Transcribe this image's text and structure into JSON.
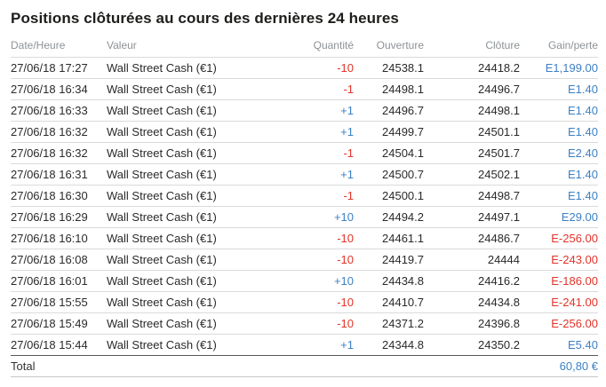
{
  "title": "Positions clôturées au cours des dernières 24 heures",
  "columns": {
    "date": "Date/Heure",
    "valeur": "Valeur",
    "quantite": "Quantité",
    "ouverture": "Ouverture",
    "cloture": "Clôture",
    "gain": "Gain/perte"
  },
  "rows": [
    {
      "date": "27/06/18 17:27",
      "valeur": "Wall Street Cash (€1)",
      "quantite": "-10",
      "quantite_sign": "neg",
      "ouverture": "24538.1",
      "cloture": "24418.2",
      "gain": "E1,199.00",
      "gain_sign": "pos"
    },
    {
      "date": "27/06/18 16:34",
      "valeur": "Wall Street Cash (€1)",
      "quantite": "-1",
      "quantite_sign": "neg",
      "ouverture": "24498.1",
      "cloture": "24496.7",
      "gain": "E1.40",
      "gain_sign": "pos"
    },
    {
      "date": "27/06/18 16:33",
      "valeur": "Wall Street Cash (€1)",
      "quantite": "+1",
      "quantite_sign": "pos",
      "ouverture": "24496.7",
      "cloture": "24498.1",
      "gain": "E1.40",
      "gain_sign": "pos"
    },
    {
      "date": "27/06/18 16:32",
      "valeur": "Wall Street Cash (€1)",
      "quantite": "+1",
      "quantite_sign": "pos",
      "ouverture": "24499.7",
      "cloture": "24501.1",
      "gain": "E1.40",
      "gain_sign": "pos"
    },
    {
      "date": "27/06/18 16:32",
      "valeur": "Wall Street Cash (€1)",
      "quantite": "-1",
      "quantite_sign": "neg",
      "ouverture": "24504.1",
      "cloture": "24501.7",
      "gain": "E2.40",
      "gain_sign": "pos"
    },
    {
      "date": "27/06/18 16:31",
      "valeur": "Wall Street Cash (€1)",
      "quantite": "+1",
      "quantite_sign": "pos",
      "ouverture": "24500.7",
      "cloture": "24502.1",
      "gain": "E1.40",
      "gain_sign": "pos"
    },
    {
      "date": "27/06/18 16:30",
      "valeur": "Wall Street Cash (€1)",
      "quantite": "-1",
      "quantite_sign": "neg",
      "ouverture": "24500.1",
      "cloture": "24498.7",
      "gain": "E1.40",
      "gain_sign": "pos"
    },
    {
      "date": "27/06/18 16:29",
      "valeur": "Wall Street Cash (€1)",
      "quantite": "+10",
      "quantite_sign": "pos",
      "ouverture": "24494.2",
      "cloture": "24497.1",
      "gain": "E29.00",
      "gain_sign": "pos"
    },
    {
      "date": "27/06/18 16:10",
      "valeur": "Wall Street Cash (€1)",
      "quantite": "-10",
      "quantite_sign": "neg",
      "ouverture": "24461.1",
      "cloture": "24486.7",
      "gain": "E-256.00",
      "gain_sign": "neg"
    },
    {
      "date": "27/06/18 16:08",
      "valeur": "Wall Street Cash (€1)",
      "quantite": "-10",
      "quantite_sign": "neg",
      "ouverture": "24419.7",
      "cloture": "24444",
      "gain": "E-243.00",
      "gain_sign": "neg"
    },
    {
      "date": "27/06/18 16:01",
      "valeur": "Wall Street Cash (€1)",
      "quantite": "+10",
      "quantite_sign": "pos",
      "ouverture": "24434.8",
      "cloture": "24416.2",
      "gain": "E-186.00",
      "gain_sign": "neg"
    },
    {
      "date": "27/06/18 15:55",
      "valeur": "Wall Street Cash (€1)",
      "quantite": "-10",
      "quantite_sign": "neg",
      "ouverture": "24410.7",
      "cloture": "24434.8",
      "gain": "E-241.00",
      "gain_sign": "neg"
    },
    {
      "date": "27/06/18 15:49",
      "valeur": "Wall Street Cash (€1)",
      "quantite": "-10",
      "quantite_sign": "neg",
      "ouverture": "24371.2",
      "cloture": "24396.8",
      "gain": "E-256.00",
      "gain_sign": "neg"
    },
    {
      "date": "27/06/18 15:44",
      "valeur": "Wall Street Cash (€1)",
      "quantite": "+1",
      "quantite_sign": "pos",
      "ouverture": "24344.8",
      "cloture": "24350.2",
      "gain": "E5.40",
      "gain_sign": "pos"
    }
  ],
  "total": {
    "label": "Total",
    "value": "60,80 €"
  },
  "colors": {
    "positive": "#3d80c4",
    "negative": "#e23329",
    "header_text": "#8d9296",
    "title_text": "#1d1d1b",
    "row_divider": "#dadada",
    "total_divider": "#54585b"
  }
}
